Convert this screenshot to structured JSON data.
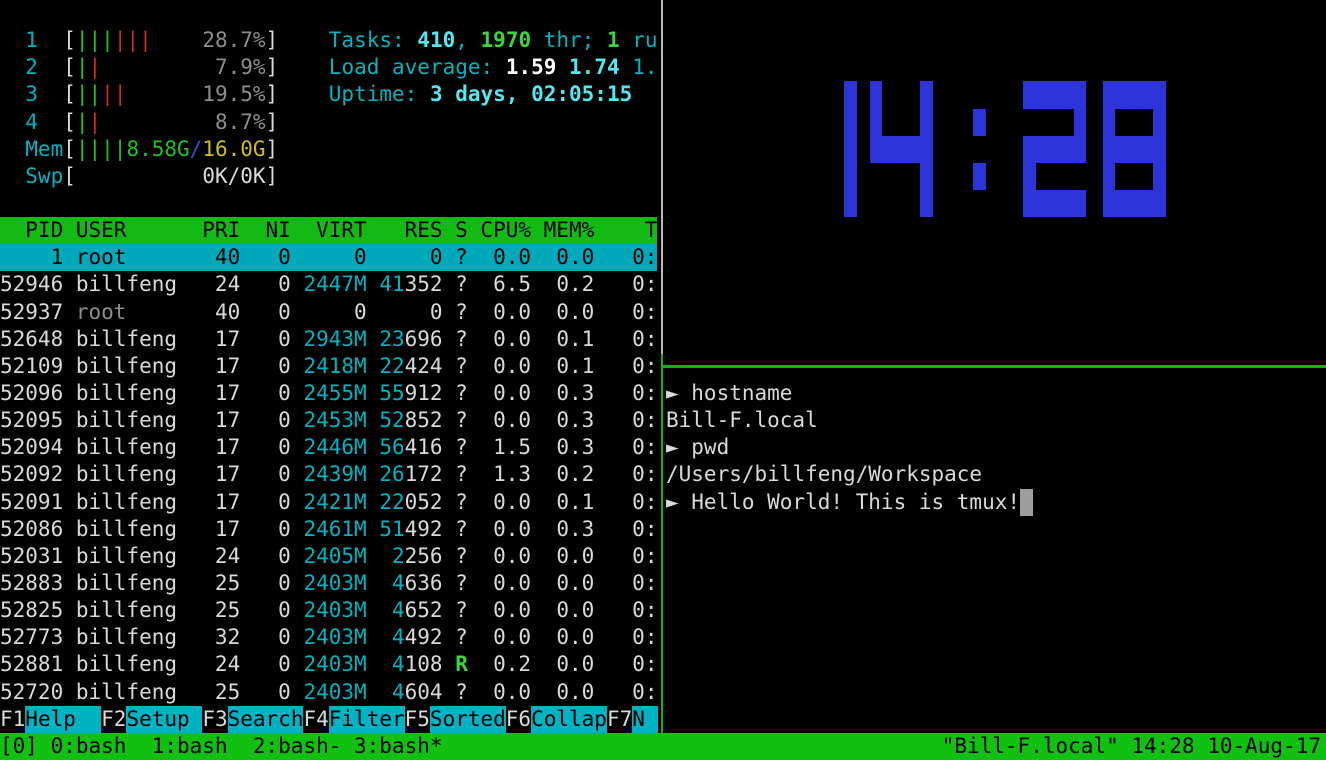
{
  "htop": {
    "lines": [
      {
        "row": 1,
        "segs": [
          [
            "  1  ",
            "c"
          ],
          [
            "[",
            "w"
          ],
          [
            "|||",
            "g"
          ],
          [
            "|||",
            "r"
          ],
          [
            "    ",
            "w"
          ],
          [
            "28.7%",
            "d"
          ],
          [
            "]",
            "w"
          ],
          [
            "    ",
            "w"
          ],
          [
            "Tasks: ",
            "c"
          ],
          [
            "410",
            "C"
          ],
          [
            ", ",
            "c"
          ],
          [
            "1970",
            "G"
          ],
          [
            " thr; ",
            "c"
          ],
          [
            "1",
            "G"
          ],
          [
            " ru",
            "c"
          ]
        ]
      },
      {
        "row": 2,
        "segs": [
          [
            "  2  ",
            "c"
          ],
          [
            "[",
            "w"
          ],
          [
            "|",
            "g"
          ],
          [
            "|",
            "r"
          ],
          [
            "         ",
            "w"
          ],
          [
            "7.9%",
            "d"
          ],
          [
            "]",
            "w"
          ],
          [
            "    ",
            "w"
          ],
          [
            "Load average: ",
            "c"
          ],
          [
            "1.59 ",
            "W"
          ],
          [
            "1.74 ",
            "C"
          ],
          [
            "1.",
            "c"
          ]
        ]
      },
      {
        "row": 3,
        "segs": [
          [
            "  3  ",
            "c"
          ],
          [
            "[",
            "w"
          ],
          [
            "||",
            "g"
          ],
          [
            "||",
            "r"
          ],
          [
            "      ",
            "w"
          ],
          [
            "19.5%",
            "d"
          ],
          [
            "]",
            "w"
          ],
          [
            "    ",
            "w"
          ],
          [
            "Uptime: ",
            "c"
          ],
          [
            "3 days, 02:05:15",
            "C"
          ]
        ]
      },
      {
        "row": 4,
        "segs": [
          [
            "  4  ",
            "c"
          ],
          [
            "[",
            "w"
          ],
          [
            "|",
            "g"
          ],
          [
            "|",
            "r"
          ],
          [
            "         ",
            "w"
          ],
          [
            "8.7%",
            "d"
          ],
          [
            "]",
            "w"
          ]
        ]
      },
      {
        "row": 5,
        "segs": [
          [
            "  Mem",
            "c"
          ],
          [
            "[",
            "w"
          ],
          [
            "||||",
            "g"
          ],
          [
            "8.58G",
            "g"
          ],
          [
            "/",
            "b"
          ],
          [
            "16.0G",
            "y"
          ],
          [
            "]",
            "w"
          ]
        ]
      },
      {
        "row": 6,
        "segs": [
          [
            "  Swp",
            "c"
          ],
          [
            "[",
            "w"
          ],
          [
            "          ",
            "w"
          ],
          [
            "0K/0K",
            "w"
          ],
          [
            "]",
            "w"
          ]
        ]
      },
      {
        "row": 8,
        "name": "htop-table-header",
        "segs": [
          [
            "  PID USER      PRI  NI  VIRT   RES S CPU% MEM%    T",
            "hdr"
          ]
        ]
      },
      {
        "row": 9,
        "name": "htop-row-selected",
        "segs": [
          [
            "    1 root       40   0     0     0 ?  0.0  0.0   0:",
            "sel"
          ]
        ]
      },
      {
        "row": 10,
        "segs": [
          [
            "52946 billfeng   24   0 ",
            "w"
          ],
          [
            "2447M",
            "c"
          ],
          [
            " ",
            "w"
          ],
          [
            "41",
            "c"
          ],
          [
            "352 ?  6.5  0.2   0:",
            "w"
          ]
        ]
      },
      {
        "row": 11,
        "segs": [
          [
            "52937 ",
            "w"
          ],
          [
            "root",
            "d"
          ],
          [
            "       40   0     0     0 ?  0.0  0.0   0:",
            "w"
          ]
        ]
      },
      {
        "row": 12,
        "segs": [
          [
            "52648 billfeng   17   0 ",
            "w"
          ],
          [
            "2943M",
            "c"
          ],
          [
            " ",
            "w"
          ],
          [
            "23",
            "c"
          ],
          [
            "696 ?  0.0  0.1   0:",
            "w"
          ]
        ]
      },
      {
        "row": 13,
        "segs": [
          [
            "52109 billfeng   17   0 ",
            "w"
          ],
          [
            "2418M",
            "c"
          ],
          [
            " ",
            "w"
          ],
          [
            "22",
            "c"
          ],
          [
            "424 ?  0.0  0.1   0:",
            "w"
          ]
        ]
      },
      {
        "row": 14,
        "segs": [
          [
            "52096 billfeng   17   0 ",
            "w"
          ],
          [
            "2455M",
            "c"
          ],
          [
            " ",
            "w"
          ],
          [
            "55",
            "c"
          ],
          [
            "912 ?  0.0  0.3   0:",
            "w"
          ]
        ]
      },
      {
        "row": 15,
        "segs": [
          [
            "52095 billfeng   17   0 ",
            "w"
          ],
          [
            "2453M",
            "c"
          ],
          [
            " ",
            "w"
          ],
          [
            "52",
            "c"
          ],
          [
            "852 ?  0.0  0.3   0:",
            "w"
          ]
        ]
      },
      {
        "row": 16,
        "segs": [
          [
            "52094 billfeng   17   0 ",
            "w"
          ],
          [
            "2446M",
            "c"
          ],
          [
            " ",
            "w"
          ],
          [
            "56",
            "c"
          ],
          [
            "416 ?  1.5  0.3   0:",
            "w"
          ]
        ]
      },
      {
        "row": 17,
        "segs": [
          [
            "52092 billfeng   17   0 ",
            "w"
          ],
          [
            "2439M",
            "c"
          ],
          [
            " ",
            "w"
          ],
          [
            "26",
            "c"
          ],
          [
            "172 ?  1.3  0.2   0:",
            "w"
          ]
        ]
      },
      {
        "row": 18,
        "segs": [
          [
            "52091 billfeng   17   0 ",
            "w"
          ],
          [
            "2421M",
            "c"
          ],
          [
            " ",
            "w"
          ],
          [
            "22",
            "c"
          ],
          [
            "052 ?  0.0  0.1   0:",
            "w"
          ]
        ]
      },
      {
        "row": 19,
        "segs": [
          [
            "52086 billfeng   17   0 ",
            "w"
          ],
          [
            "2461M",
            "c"
          ],
          [
            " ",
            "w"
          ],
          [
            "51",
            "c"
          ],
          [
            "492 ?  0.0  0.3   0:",
            "w"
          ]
        ]
      },
      {
        "row": 20,
        "segs": [
          [
            "52031 billfeng   24   0 ",
            "w"
          ],
          [
            "2405M",
            "c"
          ],
          [
            "  ",
            "w"
          ],
          [
            "2",
            "c"
          ],
          [
            "256 ?  0.0  0.0   0:",
            "w"
          ]
        ]
      },
      {
        "row": 21,
        "segs": [
          [
            "52883 billfeng   25   0 ",
            "w"
          ],
          [
            "2403M",
            "c"
          ],
          [
            "  ",
            "w"
          ],
          [
            "4",
            "c"
          ],
          [
            "636 ?  0.0  0.0   0:",
            "w"
          ]
        ]
      },
      {
        "row": 22,
        "segs": [
          [
            "52825 billfeng   25   0 ",
            "w"
          ],
          [
            "2403M",
            "c"
          ],
          [
            "  ",
            "w"
          ],
          [
            "4",
            "c"
          ],
          [
            "652 ?  0.0  0.0   0:",
            "w"
          ]
        ]
      },
      {
        "row": 23,
        "segs": [
          [
            "52773 billfeng   32   0 ",
            "w"
          ],
          [
            "2403M",
            "c"
          ],
          [
            "  ",
            "w"
          ],
          [
            "4",
            "c"
          ],
          [
            "492 ?  0.0  0.0   0:",
            "w"
          ]
        ]
      },
      {
        "row": 24,
        "segs": [
          [
            "52881 billfeng   24   0 ",
            "w"
          ],
          [
            "2403M",
            "c"
          ],
          [
            "  ",
            "w"
          ],
          [
            "4",
            "c"
          ],
          [
            "108 ",
            "w"
          ],
          [
            "R",
            "G"
          ],
          [
            "  0.2  0.0   0:",
            "w"
          ]
        ]
      },
      {
        "row": 25,
        "segs": [
          [
            "52720 billfeng   25   0 ",
            "w"
          ],
          [
            "2403M",
            "c"
          ],
          [
            "  ",
            "w"
          ],
          [
            "4",
            "c"
          ],
          [
            "604 ?  0.0  0.0   0:",
            "w"
          ]
        ]
      },
      {
        "row": 26,
        "name": "htop-function-keys",
        "inter": "true",
        "segs": [
          [
            "F1",
            "key"
          ],
          [
            "Help  ",
            "lbl"
          ],
          [
            "F2",
            "key"
          ],
          [
            "Setup ",
            "lbl"
          ],
          [
            "F3",
            "key"
          ],
          [
            "Search",
            "lbl"
          ],
          [
            "F4",
            "key"
          ],
          [
            "Filter",
            "lbl"
          ],
          [
            "F5",
            "key"
          ],
          [
            "Sorted",
            "lbl"
          ],
          [
            "F6",
            "key"
          ],
          [
            "Collap",
            "lbl"
          ],
          [
            "F7",
            "key"
          ],
          [
            "N ",
            "lbl"
          ]
        ]
      }
    ]
  },
  "shell": {
    "lines": [
      {
        "row": 14,
        "name": "shell-command-hostname",
        "segs": [
          [
            "► hostname",
            "w"
          ]
        ]
      },
      {
        "row": 15,
        "name": "shell-output-hostname",
        "segs": [
          [
            "Bill-F.local",
            "w"
          ]
        ]
      },
      {
        "row": 16,
        "name": "shell-command-pwd",
        "segs": [
          [
            "► pwd",
            "w"
          ]
        ]
      },
      {
        "row": 17,
        "name": "shell-output-pwd",
        "segs": [
          [
            "/Users/billfeng/Workspace",
            "w"
          ]
        ]
      },
      {
        "row": 18,
        "name": "shell-prompt-current",
        "segs": [
          [
            "► Hello World! This is tmux!",
            "w"
          ],
          [
            " ",
            "cur"
          ]
        ]
      }
    ]
  },
  "clock": {
    "time": "14:28",
    "color": "#2c33d9"
  },
  "status": {
    "left": "[0] 0:bash  1:bash  2:bash- 3:bash*",
    "right": "\"Bill-F.local\" 14:28 10-Aug-17"
  }
}
